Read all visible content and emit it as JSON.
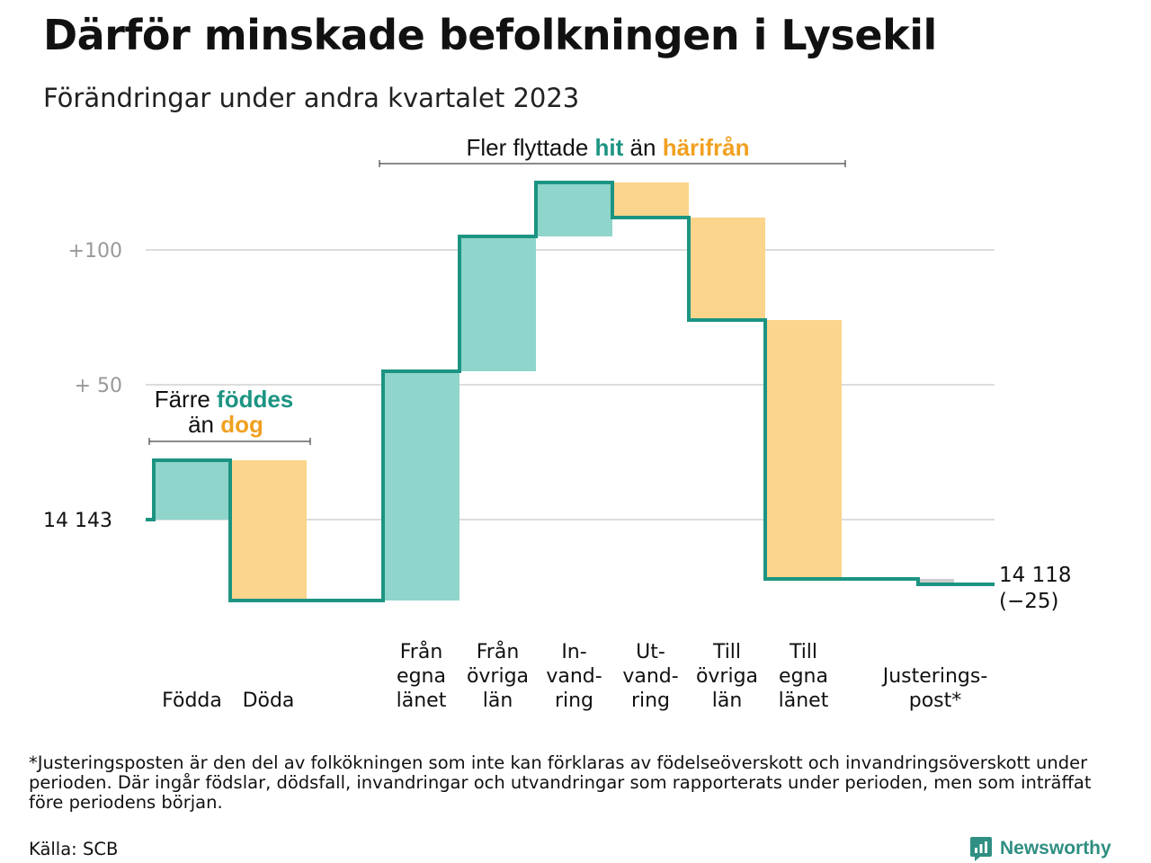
{
  "title": "Därför minskade befolkningen i Lysekil",
  "subtitle": "Förändringar under andra kvartalet 2023",
  "chart_data": {
    "type": "waterfall",
    "start_label": "14  143",
    "start_value": 14143,
    "end_label_value": "14 118",
    "end_label_change": "(−25)",
    "y_ticks": [
      {
        "label": "+100",
        "value": 100
      },
      {
        "label": "+  50",
        "value": 50
      },
      {
        "label": "14  143",
        "value": 0
      }
    ],
    "grid": true,
    "steps": [
      {
        "name": "Födda",
        "lines": [
          "Födda"
        ],
        "delta": 22
      },
      {
        "name": "Döda",
        "lines": [
          "Döda"
        ],
        "delta": -52
      },
      {
        "name": "",
        "lines": [],
        "delta": 0
      },
      {
        "name": "Från egna länet",
        "lines": [
          "Från",
          "egna",
          "länet"
        ],
        "delta": 85
      },
      {
        "name": "Från övriga län",
        "lines": [
          "Från",
          "övriga",
          "län"
        ],
        "delta": 50
      },
      {
        "name": "In-vandring",
        "lines": [
          "In-",
          "vand-",
          "ring"
        ],
        "delta": 20
      },
      {
        "name": "Ut-vandring",
        "lines": [
          "Ut-",
          "vand-",
          "ring"
        ],
        "delta": -13
      },
      {
        "name": "Till övriga län",
        "lines": [
          "Till",
          "övriga",
          "län"
        ],
        "delta": -38
      },
      {
        "name": "Till egna länet",
        "lines": [
          "Till",
          "egna",
          "länet"
        ],
        "delta": -96
      },
      {
        "name": "",
        "lines": [],
        "delta": 0
      },
      {
        "name": "Justeringspost*",
        "lines": [
          "Justerings-",
          "post*"
        ],
        "delta": -2
      }
    ],
    "annotations": [
      {
        "prefix": "Färre ",
        "highlight1": "föddes",
        "middle": "än ",
        "highlight2": "dog"
      },
      {
        "prefix": "Fler flyttade ",
        "highlight1": "hit",
        "middle": " än ",
        "highlight2": "härifrån"
      }
    ]
  },
  "colors": {
    "gain": "#8fd5cb",
    "loss": "#fbd58c",
    "line": "#1c9482",
    "teal_text": "#1c9482",
    "orange_text": "#f0a020",
    "grid": "#dddddd",
    "axis_text": "#999999",
    "adjust": "#cccccc"
  },
  "footnote": "*Justeringsposten är den del av folkökningen som inte kan förklaras av födelseöverskott och invandringsöverskott under perioden. Där ingår födslar, dödsfall, invandringar och utvandringar som rapporterats under perioden, men som inträffat före periodens början.",
  "source": "Källa: SCB",
  "brand": {
    "name": "Newsworthy",
    "icon": "newsworthy-logo-icon"
  }
}
